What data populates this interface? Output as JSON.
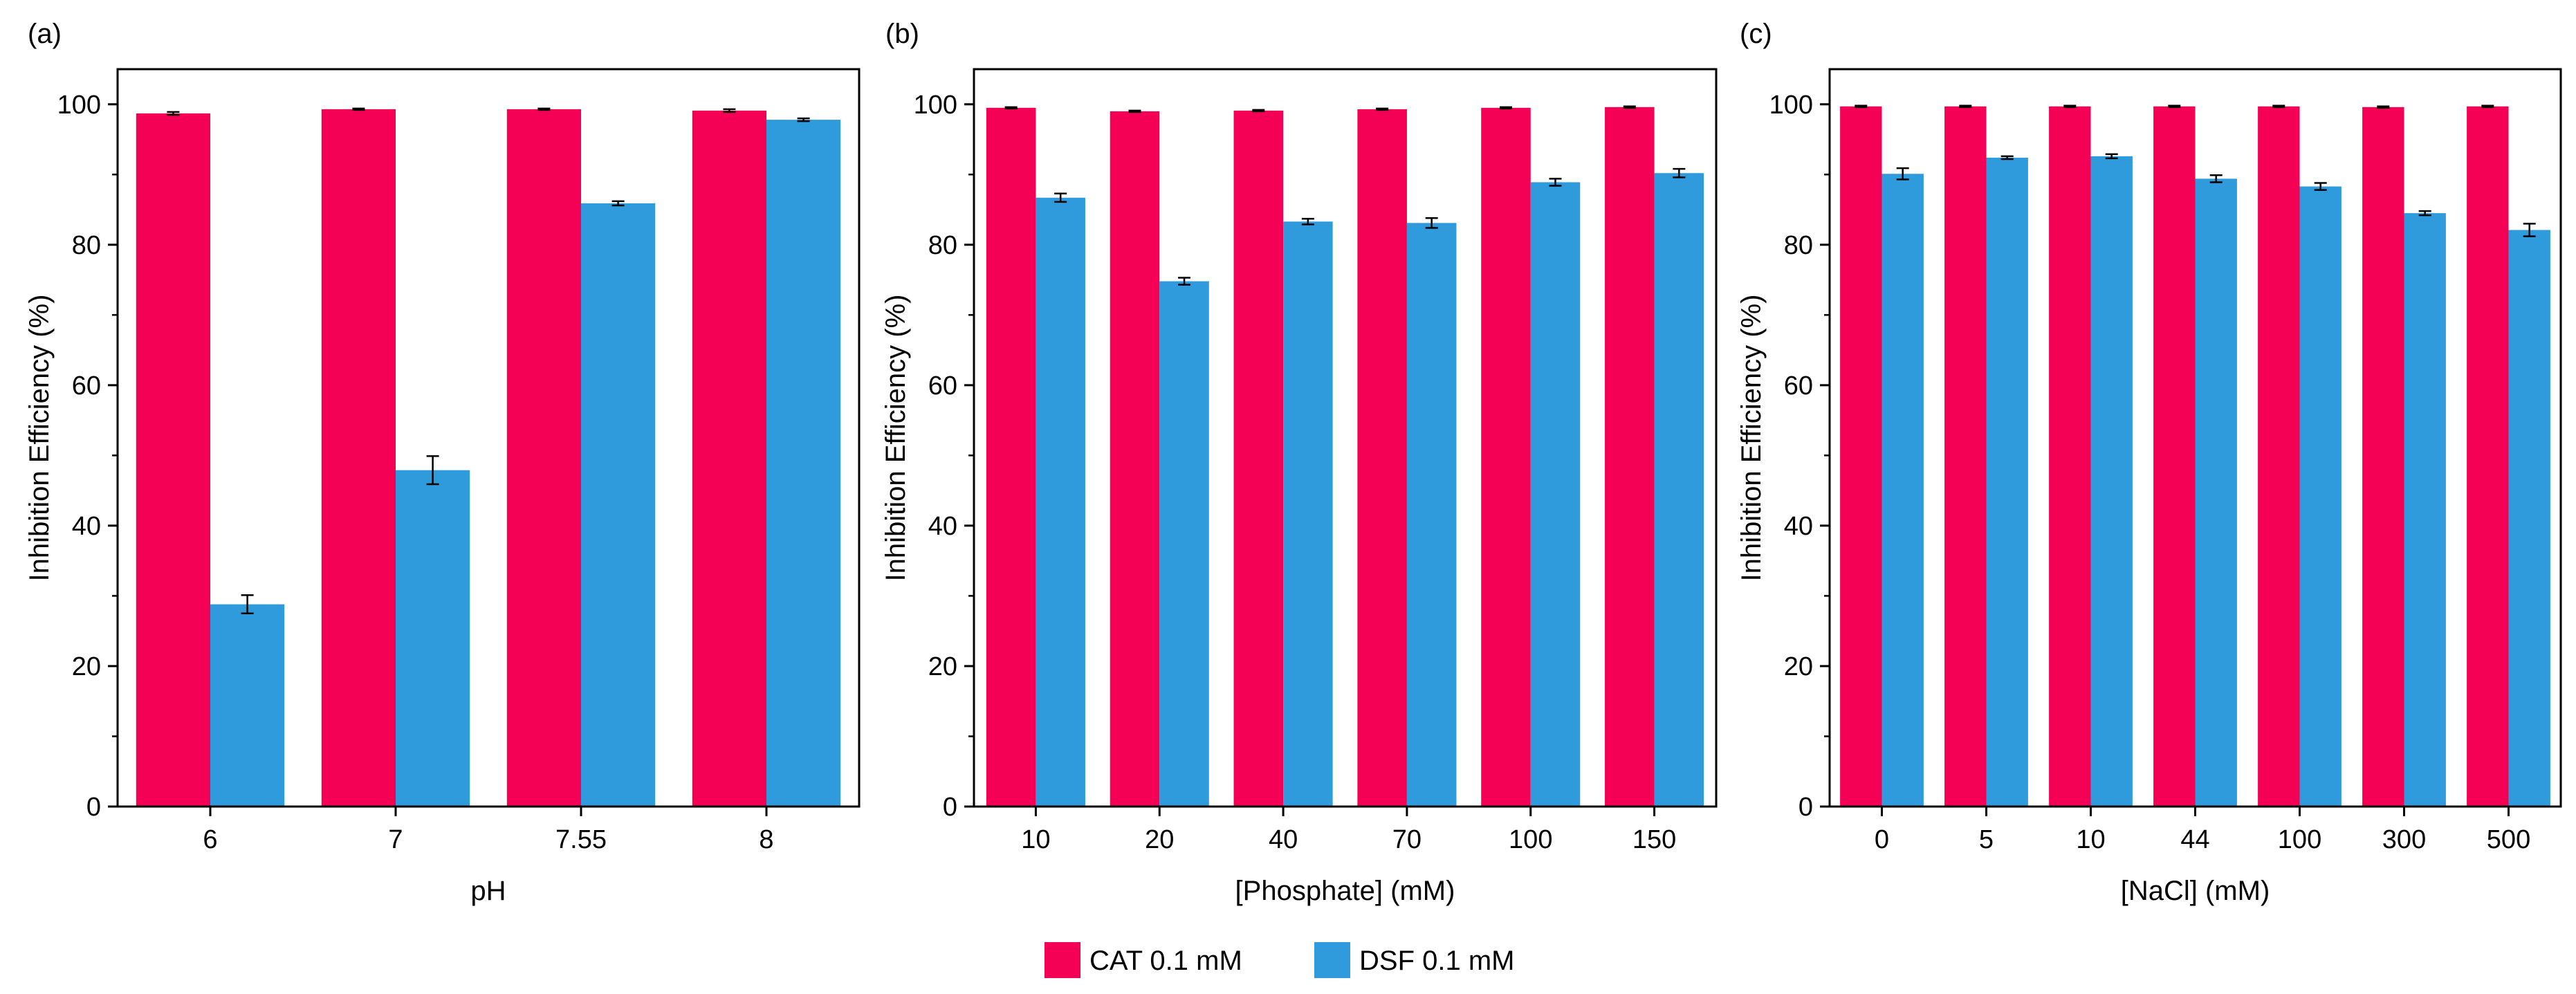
{
  "colors": {
    "cat": "#F40055",
    "dsf": "#2F9BDD",
    "axis": "#000000",
    "error": "#000000"
  },
  "legend": [
    {
      "label": "CAT 0.1 mM",
      "color": "#F40055"
    },
    {
      "label": "DSF 0.1 mM",
      "color": "#2F9BDD"
    }
  ],
  "chart_data": [
    {
      "panel_label": "(a)",
      "type": "bar",
      "xlabel": "pH",
      "ylabel": "Inhibition Efficiency (%)",
      "ylim": [
        0,
        105
      ],
      "yticks": [
        0,
        20,
        40,
        60,
        80,
        100
      ],
      "categories": [
        "6",
        "7",
        "7.55",
        "8"
      ],
      "series": [
        {
          "name": "CAT 0.1 mM",
          "values": [
            98.7,
            99.3,
            99.3,
            99.1
          ],
          "errors": [
            0.2,
            0.1,
            0.1,
            0.2
          ]
        },
        {
          "name": "DSF 0.1 mM",
          "values": [
            28.8,
            47.9,
            85.9,
            97.8
          ],
          "errors": [
            1.3,
            2.0,
            0.3,
            0.2
          ]
        }
      ]
    },
    {
      "panel_label": "(b)",
      "type": "bar",
      "xlabel": "[Phosphate] (mM)",
      "ylabel": "Inhibition Efficiency (%)",
      "ylim": [
        0,
        105
      ],
      "yticks": [
        0,
        20,
        40,
        60,
        80,
        100
      ],
      "categories": [
        "10",
        "20",
        "40",
        "70",
        "100",
        "150"
      ],
      "series": [
        {
          "name": "CAT 0.1 mM",
          "values": [
            99.5,
            99.0,
            99.1,
            99.3,
            99.5,
            99.6
          ],
          "errors": [
            0.1,
            0.1,
            0.1,
            0.1,
            0.1,
            0.1
          ]
        },
        {
          "name": "DSF 0.1 mM",
          "values": [
            86.7,
            74.8,
            83.3,
            83.1,
            88.9,
            90.2
          ],
          "errors": [
            0.6,
            0.5,
            0.4,
            0.7,
            0.5,
            0.6
          ]
        }
      ]
    },
    {
      "panel_label": "(c)",
      "type": "bar",
      "xlabel": "[NaCl] (mM)",
      "ylabel": "Inhibition Efficiency (%)",
      "ylim": [
        0,
        105
      ],
      "yticks": [
        0,
        20,
        40,
        60,
        80,
        100
      ],
      "categories": [
        "0",
        "5",
        "10",
        "44",
        "100",
        "300",
        "500"
      ],
      "series": [
        {
          "name": "CAT 0.1 mM",
          "values": [
            99.7,
            99.7,
            99.7,
            99.7,
            99.7,
            99.6,
            99.7
          ],
          "errors": [
            0.1,
            0.1,
            0.1,
            0.1,
            0.1,
            0.1,
            0.1
          ]
        },
        {
          "name": "DSF 0.1 mM",
          "values": [
            90.1,
            92.4,
            92.6,
            89.4,
            88.3,
            84.5,
            82.1
          ],
          "errors": [
            0.8,
            0.2,
            0.3,
            0.5,
            0.5,
            0.3,
            0.9
          ]
        }
      ]
    }
  ]
}
